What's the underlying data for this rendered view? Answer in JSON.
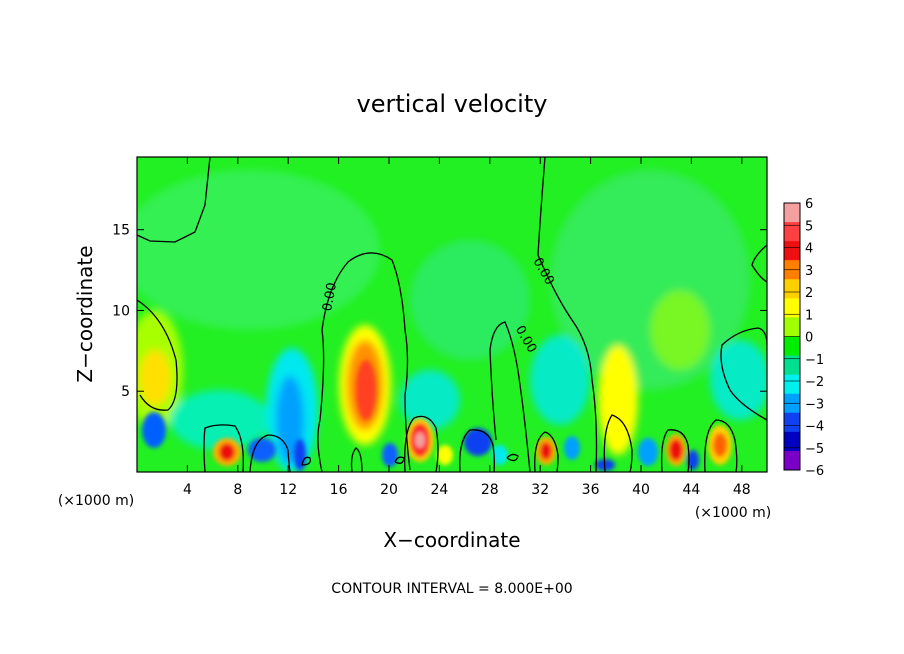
{
  "chart_data": {
    "type": "heatmap",
    "title": "vertical velocity",
    "xlabel": "X−coordinate",
    "ylabel": "Z−coordinate",
    "x_unit_label": "(×1000 m)",
    "y_unit_label": "(×1000 m)",
    "footer": "CONTOUR INTERVAL = 8.000E+00",
    "xlim": [
      0,
      50
    ],
    "ylim": [
      0,
      19.5
    ],
    "x_ticks": [
      4,
      8,
      12,
      16,
      20,
      24,
      28,
      32,
      36,
      40,
      44,
      48
    ],
    "x_tick_labels": [
      "4",
      "8",
      "12",
      "16",
      "20",
      "24",
      "28",
      "32",
      "36",
      "40",
      "44",
      "48"
    ],
    "y_ticks": [
      5,
      10,
      15
    ],
    "y_tick_labels": [
      "5",
      "10",
      "15"
    ],
    "contour_labels": [
      {
        "text": "0.00",
        "x": 15.6,
        "z": 10.8
      },
      {
        "text": "0.00",
        "x": 32.0,
        "z": 12.3
      },
      {
        "text": "0.00",
        "x": 30.6,
        "z": 8.1
      }
    ],
    "colorbar": {
      "levels": [
        6,
        5,
        4,
        3,
        2,
        1,
        0,
        -1,
        -2,
        -3,
        -4,
        -5,
        -6
      ],
      "labels": [
        "6",
        "5",
        "4",
        "3",
        "2",
        "1",
        "0",
        "−1",
        "−2",
        "−3",
        "−4",
        "−5",
        "−6"
      ],
      "colors": [
        "#f4a0a0",
        "#ff4040",
        "#ee1010",
        "#ff8000",
        "#ffd000",
        "#ffff00",
        "#a0ff00",
        "#00ee00",
        "#00e090",
        "#00f0f0",
        "#00a0ff",
        "#1040f0",
        "#0000c0",
        "#7a00c8"
      ]
    },
    "background_color": "#22f022",
    "features": [
      {
        "x": 1.2,
        "z": 6.2,
        "value": 1.5
      },
      {
        "x": 1.2,
        "z": 2.5,
        "value": -3.5
      },
      {
        "x": 6.8,
        "z": 1.3,
        "value": 5
      },
      {
        "x": 12.2,
        "z": 4.0,
        "value": -3
      },
      {
        "x": 18.0,
        "z": 5.5,
        "value": 3.5
      },
      {
        "x": 22.2,
        "z": 2.0,
        "value": 6
      },
      {
        "x": 27.2,
        "z": 2.0,
        "value": -4
      },
      {
        "x": 32.5,
        "z": 1.2,
        "value": 5
      },
      {
        "x": 34.0,
        "z": 2.0,
        "value": -2.5
      },
      {
        "x": 38.0,
        "z": 3.0,
        "value": 2
      },
      {
        "x": 42.5,
        "z": 1.5,
        "value": 5
      },
      {
        "x": 46.2,
        "z": 1.8,
        "value": 4
      }
    ]
  }
}
